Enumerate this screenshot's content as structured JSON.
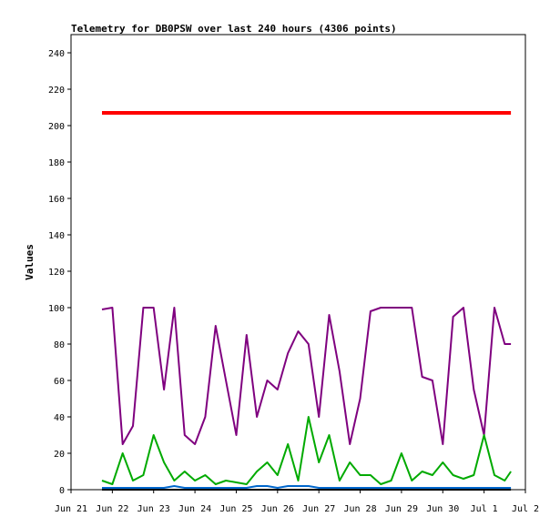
{
  "chart_data": {
    "type": "line",
    "title": "Telemetry for DB0PSW over last 240 hours (4306 points)",
    "xlabel": "",
    "ylabel": "Values",
    "ylim": [
      0,
      250
    ],
    "y_ticks": [
      0,
      20,
      40,
      60,
      80,
      100,
      120,
      140,
      160,
      180,
      200,
      220,
      240
    ],
    "x_ticks": [
      "Jun 21",
      "Jun 22",
      "Jun 23",
      "Jun 24",
      "Jun 25",
      "Jun 26",
      "Jun 27",
      "Jun 28",
      "Jun 29",
      "Jun 30",
      "Jul 1",
      "Jul 2"
    ],
    "grid": false,
    "x": [
      21.75,
      22.0,
      22.25,
      22.5,
      22.75,
      23.0,
      23.25,
      23.5,
      23.75,
      24.0,
      24.25,
      24.5,
      24.75,
      25.0,
      25.25,
      25.5,
      25.75,
      26.0,
      26.25,
      26.5,
      26.75,
      27.0,
      27.25,
      27.5,
      27.75,
      28.0,
      28.25,
      28.5,
      28.75,
      29.0,
      29.25,
      29.5,
      29.75,
      30.0,
      30.25,
      30.5,
      30.75,
      31.0,
      31.25,
      31.5,
      31.65
    ],
    "series": [
      {
        "color": "#ff0000",
        "width": 4,
        "values": [
          207,
          207,
          207,
          207,
          207,
          207,
          207,
          207,
          207,
          207,
          207,
          207,
          207,
          207,
          207,
          207,
          207,
          207,
          207,
          207,
          207,
          207,
          207,
          207,
          207,
          207,
          207,
          207,
          207,
          207,
          207,
          207,
          207,
          207,
          207,
          207,
          207,
          207,
          207,
          207,
          207
        ]
      },
      {
        "color": "#7f007f",
        "width": 2,
        "values": [
          99,
          100,
          25,
          35,
          100,
          100,
          55,
          100,
          30,
          25,
          40,
          90,
          60,
          30,
          85,
          40,
          60,
          55,
          75,
          87,
          80,
          40,
          96,
          65,
          25,
          50,
          98,
          100,
          100,
          100,
          100,
          62,
          60,
          25,
          95,
          100,
          55,
          30,
          100,
          80,
          80
        ]
      },
      {
        "color": "#00aa00",
        "width": 2,
        "values": [
          5,
          3,
          20,
          5,
          8,
          30,
          15,
          5,
          10,
          5,
          8,
          3,
          5,
          4,
          3,
          10,
          15,
          8,
          25,
          5,
          40,
          15,
          30,
          5,
          15,
          8,
          8,
          3,
          5,
          20,
          5,
          10,
          8,
          15,
          8,
          6,
          8,
          30,
          8,
          5,
          10
        ]
      },
      {
        "color": "#0066cc",
        "width": 2,
        "values": [
          1,
          1,
          1,
          1,
          1,
          1,
          1,
          2,
          1,
          1,
          1,
          1,
          1,
          1,
          1,
          2,
          2,
          1,
          2,
          2,
          2,
          1,
          1,
          1,
          1,
          1,
          1,
          1,
          1,
          1,
          1,
          1,
          1,
          1,
          1,
          1,
          1,
          1,
          1,
          1,
          1
        ]
      },
      {
        "color": "#000000",
        "width": 2,
        "values": [
          0,
          0,
          0,
          0,
          0,
          0,
          0,
          0,
          0,
          0,
          0,
          0,
          0,
          0,
          0,
          0,
          0,
          0,
          0,
          0,
          0,
          0,
          0,
          0,
          0,
          0,
          0,
          0,
          0,
          0,
          0,
          0,
          0,
          0,
          0,
          0,
          0,
          0,
          0,
          0,
          0
        ]
      }
    ],
    "x_range": [
      21,
      32
    ]
  }
}
